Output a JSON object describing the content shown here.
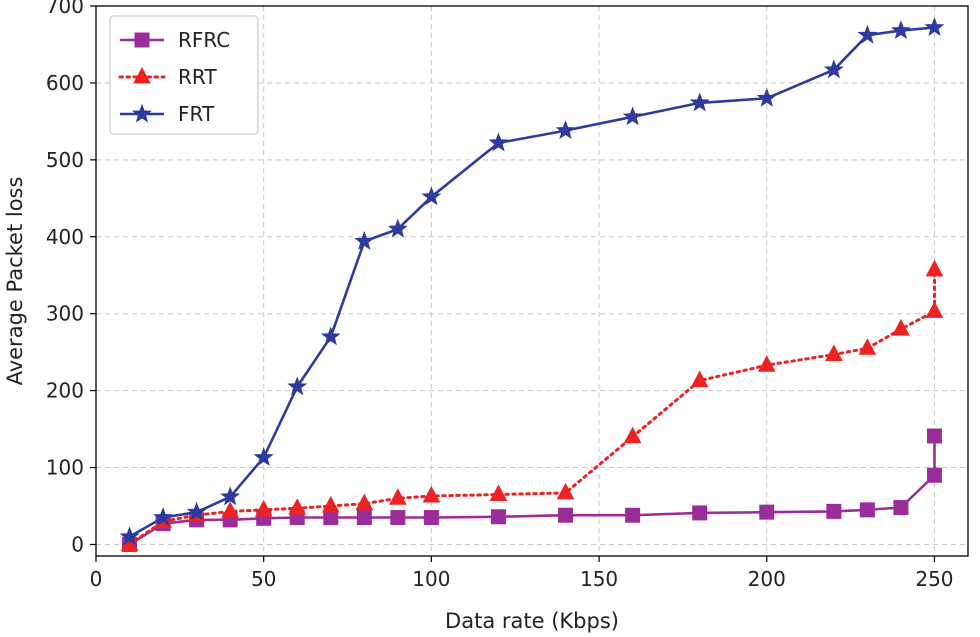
{
  "chart_data": {
    "type": "line",
    "title": "",
    "xlabel": "Data rate (Kbps)",
    "ylabel": "Average Packet loss",
    "xlim": [
      0,
      260
    ],
    "ylim": [
      -15,
      700
    ],
    "xticks": [
      0,
      50,
      100,
      150,
      200,
      250
    ],
    "yticks": [
      0,
      100,
      200,
      300,
      400,
      500,
      600,
      700
    ],
    "grid": true,
    "legend_position": "top-left",
    "series": [
      {
        "name": "RFRC",
        "color": "#9b2d9b",
        "line_style": "solid",
        "marker": "square",
        "x": [
          10,
          20,
          30,
          40,
          50,
          60,
          70,
          80,
          90,
          100,
          120,
          140,
          160,
          180,
          200,
          220,
          230,
          240,
          250,
          250
        ],
        "y": [
          0,
          27,
          32,
          32,
          34,
          35,
          35,
          35,
          35,
          35,
          36,
          38,
          38,
          41,
          42,
          43,
          45,
          48,
          90,
          141
        ]
      },
      {
        "name": "RRT",
        "color": "#ee2222",
        "line_style": "dotted",
        "marker": "triangle",
        "x": [
          10,
          20,
          30,
          40,
          50,
          60,
          70,
          80,
          90,
          100,
          120,
          140,
          160,
          180,
          200,
          220,
          230,
          240,
          250,
          250
        ],
        "y": [
          0,
          30,
          38,
          43,
          45,
          47,
          50,
          53,
          60,
          63,
          65,
          67,
          140,
          213,
          233,
          247,
          255,
          280,
          303,
          357
        ]
      },
      {
        "name": "FRT",
        "color": "#2e3a9e",
        "line_style": "solid",
        "marker": "star",
        "x": [
          10,
          20,
          30,
          40,
          50,
          60,
          70,
          80,
          90,
          100,
          120,
          140,
          160,
          180,
          200,
          220,
          230,
          240,
          250
        ],
        "y": [
          10,
          35,
          42,
          62,
          113,
          205,
          270,
          394,
          410,
          452,
          522,
          538,
          556,
          574,
          580,
          617,
          662,
          668,
          672
        ]
      }
    ]
  }
}
